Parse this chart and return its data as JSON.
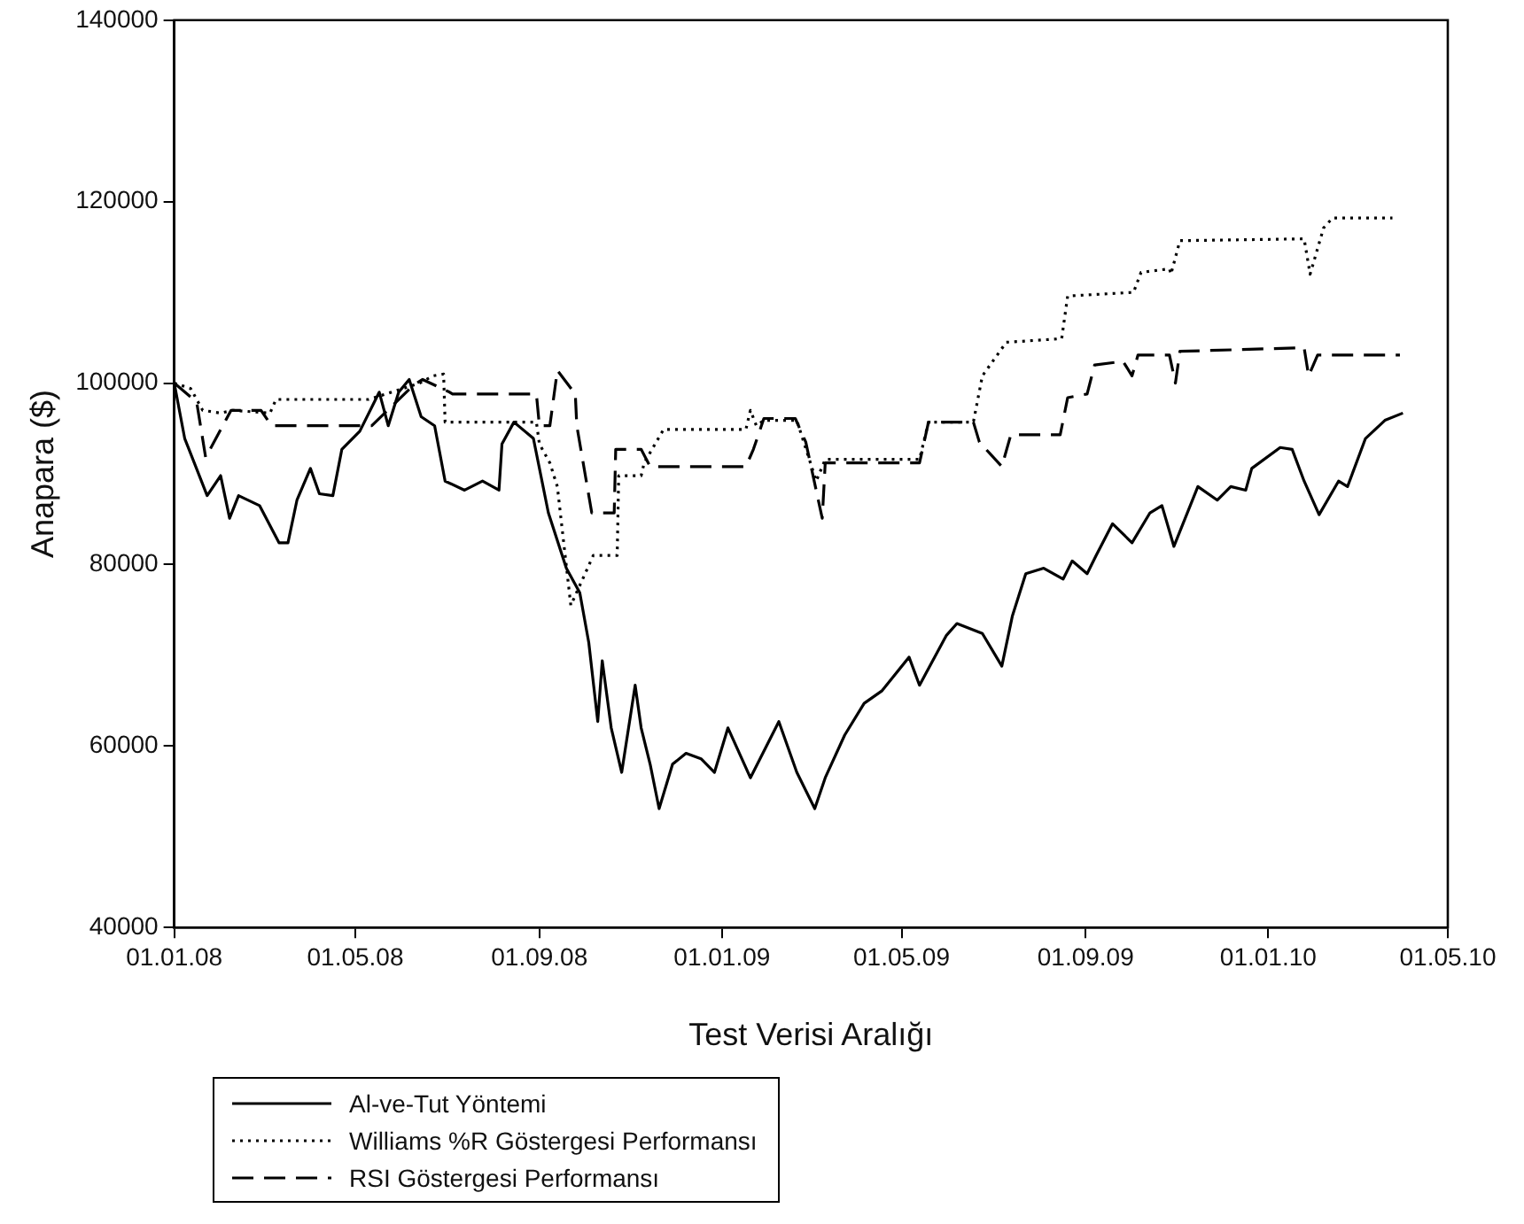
{
  "chart_data": {
    "type": "line",
    "xlabel": "Test Verisi Aralığı",
    "ylabel": "Anapara ($)",
    "legend": "bottom left",
    "grid": false,
    "marker": "none",
    "xlim": [
      "2008-01-01",
      "2010-05-01"
    ],
    "xticks": [
      {
        "value": "2008-01-01",
        "label": "01.01.08"
      },
      {
        "value": "2008-05-01",
        "label": "01.05.08"
      },
      {
        "value": "2008-09-01",
        "label": "01.09.08"
      },
      {
        "value": "2009-01-01",
        "label": "01.01.09"
      },
      {
        "value": "2009-05-01",
        "label": "01.05.09"
      },
      {
        "value": "2009-09-01",
        "label": "01.09.09"
      },
      {
        "value": "2010-01-01",
        "label": "01.01.10"
      },
      {
        "value": "2010-05-01",
        "label": "01.05.10"
      }
    ],
    "ylim": [
      40000,
      140000
    ],
    "yticks": [
      40000,
      60000,
      80000,
      100000,
      120000,
      140000
    ],
    "series": [
      {
        "name": "Al-ve-Tut Yöntemi",
        "color": "#000000",
        "line_style": "solid",
        "x": [
          "2008-01-01",
          "2008-01-08",
          "2008-01-23",
          "2008-02-01",
          "2008-02-07",
          "2008-02-13",
          "2008-02-27",
          "2008-03-11",
          "2008-03-17",
          "2008-03-23",
          "2008-04-01",
          "2008-04-07",
          "2008-04-16",
          "2008-04-22",
          "2008-05-04",
          "2008-05-17",
          "2008-05-23",
          "2008-05-30",
          "2008-06-06",
          "2008-06-14",
          "2008-06-23",
          "2008-06-30",
          "2008-07-13",
          "2008-07-25",
          "2008-08-05",
          "2008-08-07",
          "2008-08-15",
          "2008-08-28",
          "2008-09-07",
          "2008-09-19",
          "2008-09-28",
          "2008-10-04",
          "2008-10-10",
          "2008-10-13",
          "2008-10-19",
          "2008-10-26",
          "2008-11-04",
          "2008-11-08",
          "2008-11-14",
          "2008-11-20",
          "2008-11-29",
          "2008-12-08",
          "2008-12-18",
          "2008-12-27",
          "2009-01-05",
          "2009-01-20",
          "2009-02-08",
          "2009-02-20",
          "2009-03-04",
          "2009-03-11",
          "2009-03-24",
          "2009-04-06",
          "2009-04-18",
          "2009-05-06",
          "2009-05-13",
          "2009-05-31",
          "2009-06-07",
          "2009-06-24",
          "2009-07-07",
          "2009-07-14",
          "2009-07-23",
          "2009-08-04",
          "2009-08-17",
          "2009-08-23",
          "2009-09-02",
          "2009-09-08",
          "2009-09-19",
          "2009-10-02",
          "2009-10-14",
          "2009-10-22",
          "2009-10-30",
          "2009-11-15",
          "2009-11-28",
          "2009-12-07",
          "2009-12-17",
          "2009-12-21",
          "2010-01-09",
          "2010-01-17",
          "2010-01-25",
          "2010-02-04",
          "2010-02-17",
          "2010-02-23",
          "2010-03-07",
          "2010-03-20",
          "2010-04-01"
        ],
        "values": [
          100000,
          93900,
          87600,
          89800,
          85100,
          87600,
          86500,
          82400,
          82400,
          87100,
          90600,
          87800,
          87600,
          92700,
          94700,
          99000,
          95300,
          99000,
          100400,
          96300,
          95300,
          89200,
          88200,
          89200,
          88200,
          93300,
          95700,
          93900,
          85700,
          79600,
          76900,
          71400,
          62700,
          69400,
          62000,
          57100,
          66700,
          62000,
          58000,
          53100,
          58000,
          59200,
          58600,
          57100,
          62000,
          56500,
          62700,
          57100,
          53100,
          56500,
          61200,
          64700,
          66100,
          69800,
          66700,
          72200,
          73500,
          72400,
          68800,
          74300,
          79000,
          79600,
          78400,
          80400,
          79000,
          81000,
          84500,
          82400,
          85700,
          86500,
          82000,
          88600,
          87100,
          88600,
          88200,
          90600,
          92900,
          92700,
          89200,
          85500,
          89200,
          88600,
          93900,
          95900,
          96700
        ]
      },
      {
        "name": "Williams %R Göstergesi Performansı",
        "color": "#000000",
        "line_style": "dotted",
        "x": [
          "2008-01-01",
          "2008-01-12",
          "2008-01-20",
          "2008-02-01",
          "2008-02-09",
          "2008-03-05",
          "2008-03-09",
          "2008-05-10",
          "2008-06-13",
          "2008-06-22",
          "2008-06-29",
          "2008-06-30",
          "2008-08-30",
          "2008-09-01",
          "2008-09-08",
          "2008-09-13",
          "2008-09-22",
          "2008-10-07",
          "2008-10-10",
          "2008-10-16",
          "2008-10-23",
          "2008-10-24",
          "2008-11-08",
          "2008-11-10",
          "2008-11-23",
          "2009-01-17",
          "2009-01-20",
          "2009-01-24",
          "2009-01-29",
          "2009-02-20",
          "2009-03-05",
          "2009-03-11",
          "2009-05-13",
          "2009-05-19",
          "2009-06-18",
          "2009-06-24",
          "2009-07-10",
          "2009-08-16",
          "2009-08-20",
          "2009-10-03",
          "2009-10-08",
          "2009-10-27",
          "2009-10-28",
          "2009-11-03",
          "2010-01-25",
          "2010-01-29",
          "2010-02-07",
          "2010-02-13",
          "2010-03-25"
        ],
        "values": [
          100000,
          99400,
          97000,
          96700,
          97000,
          96700,
          98200,
          98200,
          100000,
          100800,
          101000,
          95700,
          95700,
          93300,
          91200,
          88600,
          75500,
          81000,
          81000,
          81000,
          81000,
          89800,
          89800,
          91200,
          94900,
          94900,
          97000,
          95300,
          95900,
          95900,
          89200,
          91600,
          91600,
          95700,
          95700,
          100800,
          104500,
          104900,
          109600,
          110000,
          112200,
          112600,
          112000,
          115700,
          115900,
          112000,
          117100,
          118200,
          118200
        ]
      },
      {
        "name": "RSI Göstergesi Performansı",
        "color": "#000000",
        "line_style": "dashed",
        "x": [
          "2008-01-01",
          "2008-01-16",
          "2008-01-22",
          "2008-02-08",
          "2008-02-28",
          "2008-03-06",
          "2008-03-08",
          "2008-05-10",
          "2008-05-12",
          "2008-06-09",
          "2008-06-15",
          "2008-07-03",
          "2008-07-05",
          "2008-08-30",
          "2008-09-01",
          "2008-09-08",
          "2008-09-13",
          "2008-09-25",
          "2008-09-26",
          "2008-10-06",
          "2008-10-21",
          "2008-10-22",
          "2008-11-08",
          "2008-11-14",
          "2009-01-17",
          "2009-01-22",
          "2009-01-29",
          "2009-02-19",
          "2009-02-26",
          "2009-03-09",
          "2009-03-11",
          "2009-05-13",
          "2009-05-19",
          "2009-06-18",
          "2009-06-22",
          "2009-07-07",
          "2009-07-13",
          "2009-08-15",
          "2009-08-20",
          "2009-09-02",
          "2009-09-07",
          "2009-09-26",
          "2009-10-02",
          "2009-10-06",
          "2009-10-27",
          "2009-10-31",
          "2009-11-03",
          "2010-01-25",
          "2010-01-28",
          "2010-02-03",
          "2010-03-30"
        ],
        "values": [
          100000,
          97900,
          91800,
          97000,
          97000,
          95300,
          95300,
          95300,
          95300,
          99800,
          100400,
          99000,
          98800,
          98800,
          95300,
          95300,
          101400,
          98800,
          95300,
          85700,
          85700,
          92700,
          92700,
          90800,
          90800,
          92700,
          96100,
          96100,
          93500,
          85100,
          91200,
          91200,
          95700,
          95700,
          93500,
          90800,
          94300,
          94300,
          98400,
          98800,
          102000,
          102400,
          100800,
          103100,
          103100,
          100000,
          103500,
          103900,
          100800,
          103100,
          103100
        ]
      }
    ]
  }
}
